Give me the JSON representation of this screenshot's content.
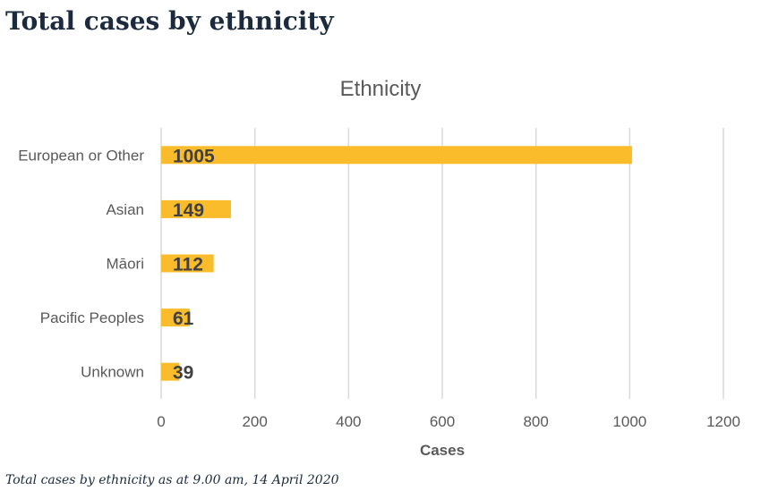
{
  "page": {
    "heading": "Total cases by ethnicity",
    "caption": "Total cases by ethnicity as at 9.00 am, 14 April 2020"
  },
  "colors": {
    "bar": "#fbbc2b",
    "heading": "#1b2a3d",
    "grid": "#d9d9d9",
    "axis_text": "#595959",
    "value_label": "#404040"
  },
  "chart_data": {
    "type": "bar",
    "orientation": "horizontal",
    "title": "Ethnicity",
    "xlabel": "Cases",
    "ylabel": "",
    "categories": [
      "European or Other",
      "Asian",
      "Māori",
      "Pacific Peoples",
      "Unknown"
    ],
    "values": [
      1005,
      149,
      112,
      61,
      39
    ],
    "value_labels": [
      "1005",
      "149",
      "112",
      "61",
      "39"
    ],
    "xlim": [
      0,
      1200
    ],
    "xticks": [
      0,
      200,
      400,
      600,
      800,
      1000,
      1200
    ],
    "xtick_labels": [
      "0",
      "200",
      "400",
      "600",
      "800",
      "1000",
      "1200"
    ],
    "grid": "vertical",
    "legend": "none"
  }
}
